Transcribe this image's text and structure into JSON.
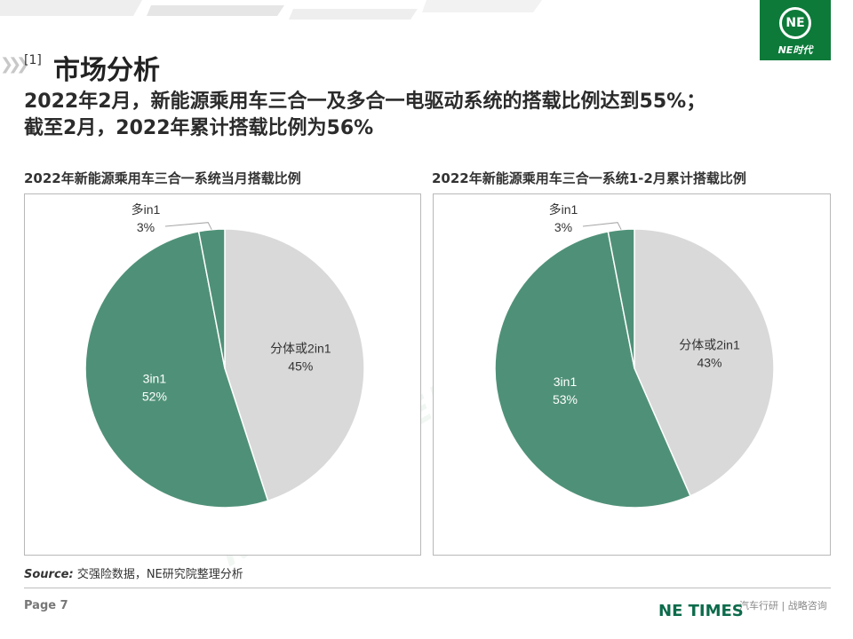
{
  "header": {
    "logo_text": "NE时代",
    "section_number": "[1]",
    "section_title": "市场分析"
  },
  "headline": {
    "line1": "2022年2月，新能源乘用车三合一及多合一电驱动系统的搭载比例达到55%；",
    "line2": "截至2月，2022年累计搭载比例为56%"
  },
  "chart_data": [
    {
      "type": "pie",
      "title": "2022年新能源乘用车三合一系统当月搭载比例",
      "slices": [
        {
          "name": "分体或2in1",
          "value": 45,
          "label": "45%",
          "color": "#d9d9d9"
        },
        {
          "name": "3in1",
          "value": 52,
          "label": "52%",
          "color": "#4f9178"
        },
        {
          "name": "多in1",
          "value": 3,
          "label": "3%",
          "color": "#4f9178"
        }
      ],
      "start": "12 o'clock",
      "direction": "clockwise"
    },
    {
      "type": "pie",
      "title": "2022年新能源乘用车三合一系统1-2月累计搭载比例",
      "slices": [
        {
          "name": "分体或2in1",
          "value": 43,
          "label": "43%",
          "color": "#d9d9d9"
        },
        {
          "name": "3in1",
          "value": 53,
          "label": "53%",
          "color": "#4f9178"
        },
        {
          "name": "多in1",
          "value": 3,
          "label": "3%",
          "color": "#4f9178"
        }
      ],
      "start": "12 o'clock",
      "direction": "clockwise"
    }
  ],
  "footer": {
    "source_label": "Source:",
    "source_text": " 交强险数据，NE研究院整理分析",
    "page": "Page 7",
    "brand": "NE TIMES",
    "tagline": "汽车行研 | 战略咨询"
  },
  "colors": {
    "brand_green": "#0d7a3a",
    "slice_green": "#4f9178",
    "slice_grey": "#d9d9d9"
  },
  "icons": {
    "logo": "ne-logo-icon",
    "chevrons": "double-chevron-icon"
  }
}
